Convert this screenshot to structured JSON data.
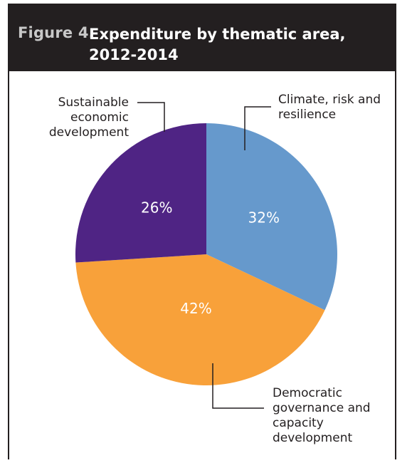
{
  "figure": {
    "number": "Figure 4.",
    "title": "Expenditure by thematic area, 2012-2014"
  },
  "chart_data": {
    "type": "pie",
    "title": "Expenditure by thematic area, 2012-2014",
    "slices": [
      {
        "label": "Climate, risk and resilience",
        "value": 32,
        "display": "32%",
        "color": "#6699cc"
      },
      {
        "label": "Democratic governance and capacity development",
        "value": 42,
        "display": "42%",
        "color": "#f8a13a"
      },
      {
        "label": "Sustainable economic development",
        "value": 26,
        "display": "26%",
        "color": "#4f2484"
      }
    ],
    "start": "12 o'clock, clockwise"
  }
}
